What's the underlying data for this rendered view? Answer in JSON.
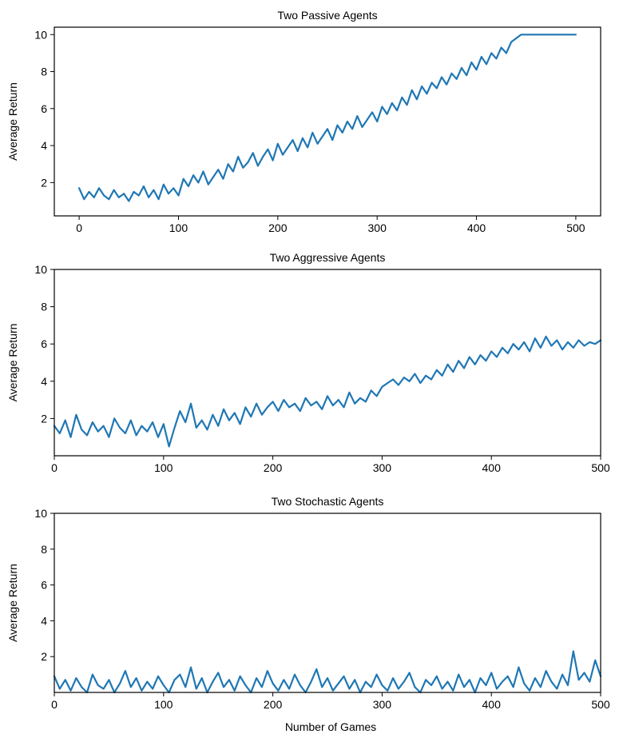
{
  "figure": {
    "xlabel": "Number of Games",
    "series_color": "#1f77b4"
  },
  "chart_data": [
    {
      "type": "line",
      "title": "Two Passive Agents",
      "xlabel": "",
      "ylabel": "Average Return",
      "xlim": [
        -25,
        525
      ],
      "ylim": [
        0.2,
        10.4
      ],
      "xticks": [
        0,
        100,
        200,
        300,
        400,
        500
      ],
      "yticks": [
        2,
        4,
        6,
        8,
        10
      ],
      "series": [
        {
          "x": [
            0,
            5,
            10,
            15,
            20,
            25,
            30,
            35,
            40,
            45,
            50,
            55,
            60,
            65,
            70,
            75,
            80,
            85,
            90,
            95,
            100,
            105,
            110,
            115,
            120,
            125,
            130,
            135,
            140,
            145,
            150,
            155,
            160,
            165,
            170,
            175,
            180,
            185,
            190,
            195,
            200,
            205,
            210,
            215,
            220,
            225,
            230,
            235,
            240,
            245,
            250,
            255,
            260,
            265,
            270,
            275,
            280,
            285,
            290,
            295,
            300,
            305,
            310,
            315,
            320,
            325,
            330,
            335,
            340,
            345,
            350,
            355,
            360,
            365,
            370,
            375,
            380,
            385,
            390,
            395,
            400,
            405,
            410,
            415,
            420,
            425,
            430,
            435,
            440,
            445,
            450,
            455,
            460,
            465,
            470,
            475,
            480,
            485,
            490,
            495,
            500
          ],
          "y": [
            1.7,
            1.1,
            1.5,
            1.2,
            1.7,
            1.3,
            1.1,
            1.6,
            1.2,
            1.4,
            1.0,
            1.5,
            1.3,
            1.8,
            1.2,
            1.6,
            1.1,
            1.9,
            1.4,
            1.7,
            1.3,
            2.2,
            1.8,
            2.4,
            2.0,
            2.6,
            1.9,
            2.3,
            2.7,
            2.2,
            3.0,
            2.6,
            3.4,
            2.8,
            3.1,
            3.6,
            2.9,
            3.4,
            3.8,
            3.2,
            4.1,
            3.5,
            3.9,
            4.3,
            3.7,
            4.4,
            3.9,
            4.7,
            4.1,
            4.5,
            4.9,
            4.3,
            5.1,
            4.7,
            5.3,
            4.9,
            5.6,
            5.0,
            5.4,
            5.8,
            5.3,
            6.1,
            5.7,
            6.3,
            5.9,
            6.6,
            6.2,
            7.0,
            6.5,
            7.2,
            6.8,
            7.4,
            7.1,
            7.7,
            7.3,
            7.9,
            7.6,
            8.2,
            7.8,
            8.5,
            8.1,
            8.8,
            8.4,
            9.0,
            8.7,
            9.3,
            9.0,
            9.6,
            9.8,
            10.0,
            10.0,
            10.0,
            10.0,
            10.0,
            10.0,
            10.0,
            10.0,
            10.0,
            10.0,
            10.0,
            10.0
          ]
        }
      ]
    },
    {
      "type": "line",
      "title": "Two Aggressive Agents",
      "xlabel": "",
      "ylabel": "Average Return",
      "xlim": [
        0,
        500
      ],
      "ylim": [
        0,
        10
      ],
      "xticks": [
        0,
        100,
        200,
        300,
        400,
        500
      ],
      "yticks": [
        2,
        4,
        6,
        8,
        10
      ],
      "series": [
        {
          "x": [
            0,
            5,
            10,
            15,
            20,
            25,
            30,
            35,
            40,
            45,
            50,
            55,
            60,
            65,
            70,
            75,
            80,
            85,
            90,
            95,
            100,
            105,
            110,
            115,
            120,
            125,
            130,
            135,
            140,
            145,
            150,
            155,
            160,
            165,
            170,
            175,
            180,
            185,
            190,
            195,
            200,
            205,
            210,
            215,
            220,
            225,
            230,
            235,
            240,
            245,
            250,
            255,
            260,
            265,
            270,
            275,
            280,
            285,
            290,
            295,
            300,
            305,
            310,
            315,
            320,
            325,
            330,
            335,
            340,
            345,
            350,
            355,
            360,
            365,
            370,
            375,
            380,
            385,
            390,
            395,
            400,
            405,
            410,
            415,
            420,
            425,
            430,
            435,
            440,
            445,
            450,
            455,
            460,
            465,
            470,
            475,
            480,
            485,
            490,
            495,
            500
          ],
          "y": [
            1.6,
            1.2,
            1.9,
            1.0,
            2.2,
            1.4,
            1.1,
            1.8,
            1.3,
            1.6,
            1.0,
            2.0,
            1.5,
            1.2,
            1.9,
            1.1,
            1.6,
            1.3,
            1.8,
            1.0,
            1.7,
            0.5,
            1.5,
            2.4,
            1.8,
            2.8,
            1.5,
            1.9,
            1.4,
            2.2,
            1.6,
            2.5,
            1.9,
            2.3,
            1.7,
            2.6,
            2.1,
            2.8,
            2.2,
            2.6,
            2.9,
            2.4,
            3.0,
            2.6,
            2.8,
            2.4,
            3.1,
            2.7,
            2.9,
            2.5,
            3.2,
            2.7,
            3.0,
            2.6,
            3.4,
            2.8,
            3.1,
            2.9,
            3.5,
            3.2,
            3.7,
            3.9,
            4.1,
            3.8,
            4.2,
            4.0,
            4.4,
            3.9,
            4.3,
            4.1,
            4.6,
            4.3,
            4.9,
            4.5,
            5.1,
            4.7,
            5.3,
            4.9,
            5.4,
            5.1,
            5.6,
            5.3,
            5.8,
            5.5,
            6.0,
            5.7,
            6.1,
            5.6,
            6.3,
            5.8,
            6.4,
            5.9,
            6.2,
            5.7,
            6.1,
            5.8,
            6.2,
            5.9,
            6.1,
            6.0,
            6.2
          ]
        }
      ]
    },
    {
      "type": "line",
      "title": "Two Stochastic Agents",
      "xlabel": "Number of Games",
      "ylabel": "Average Return",
      "xlim": [
        0,
        500
      ],
      "ylim": [
        0,
        10
      ],
      "xticks": [
        0,
        100,
        200,
        300,
        400,
        500
      ],
      "yticks": [
        2,
        4,
        6,
        8,
        10
      ],
      "series": [
        {
          "x": [
            0,
            5,
            10,
            15,
            20,
            25,
            30,
            35,
            40,
            45,
            50,
            55,
            60,
            65,
            70,
            75,
            80,
            85,
            90,
            95,
            100,
            105,
            110,
            115,
            120,
            125,
            130,
            135,
            140,
            145,
            150,
            155,
            160,
            165,
            170,
            175,
            180,
            185,
            190,
            195,
            200,
            205,
            210,
            215,
            220,
            225,
            230,
            235,
            240,
            245,
            250,
            255,
            260,
            265,
            270,
            275,
            280,
            285,
            290,
            295,
            300,
            305,
            310,
            315,
            320,
            325,
            330,
            335,
            340,
            345,
            350,
            355,
            360,
            365,
            370,
            375,
            380,
            385,
            390,
            395,
            400,
            405,
            410,
            415,
            420,
            425,
            430,
            435,
            440,
            445,
            450,
            455,
            460,
            465,
            470,
            475,
            480,
            485,
            490,
            495,
            500
          ],
          "y": [
            0.9,
            0.2,
            0.7,
            0.1,
            0.8,
            0.3,
            0.0,
            1.0,
            0.4,
            0.2,
            0.7,
            0.0,
            0.5,
            1.2,
            0.3,
            0.8,
            0.1,
            0.6,
            0.2,
            0.9,
            0.4,
            0.0,
            0.7,
            1.0,
            0.3,
            1.4,
            0.2,
            0.8,
            0.0,
            0.6,
            1.1,
            0.3,
            0.7,
            0.1,
            0.9,
            0.4,
            0.0,
            0.8,
            0.3,
            1.2,
            0.5,
            0.1,
            0.7,
            0.2,
            1.0,
            0.4,
            0.0,
            0.6,
            1.3,
            0.3,
            0.8,
            0.1,
            0.5,
            0.9,
            0.2,
            0.7,
            0.0,
            0.6,
            0.3,
            1.0,
            0.4,
            0.1,
            0.8,
            0.2,
            0.6,
            1.1,
            0.3,
            0.0,
            0.7,
            0.4,
            0.9,
            0.2,
            0.6,
            0.1,
            1.0,
            0.3,
            0.7,
            0.0,
            0.8,
            0.4,
            1.1,
            0.2,
            0.6,
            0.9,
            0.3,
            1.4,
            0.5,
            0.1,
            0.8,
            0.3,
            1.2,
            0.6,
            0.2,
            1.0,
            0.4,
            2.3,
            0.7,
            1.1,
            0.6,
            1.8,
            0.9
          ]
        }
      ]
    }
  ]
}
